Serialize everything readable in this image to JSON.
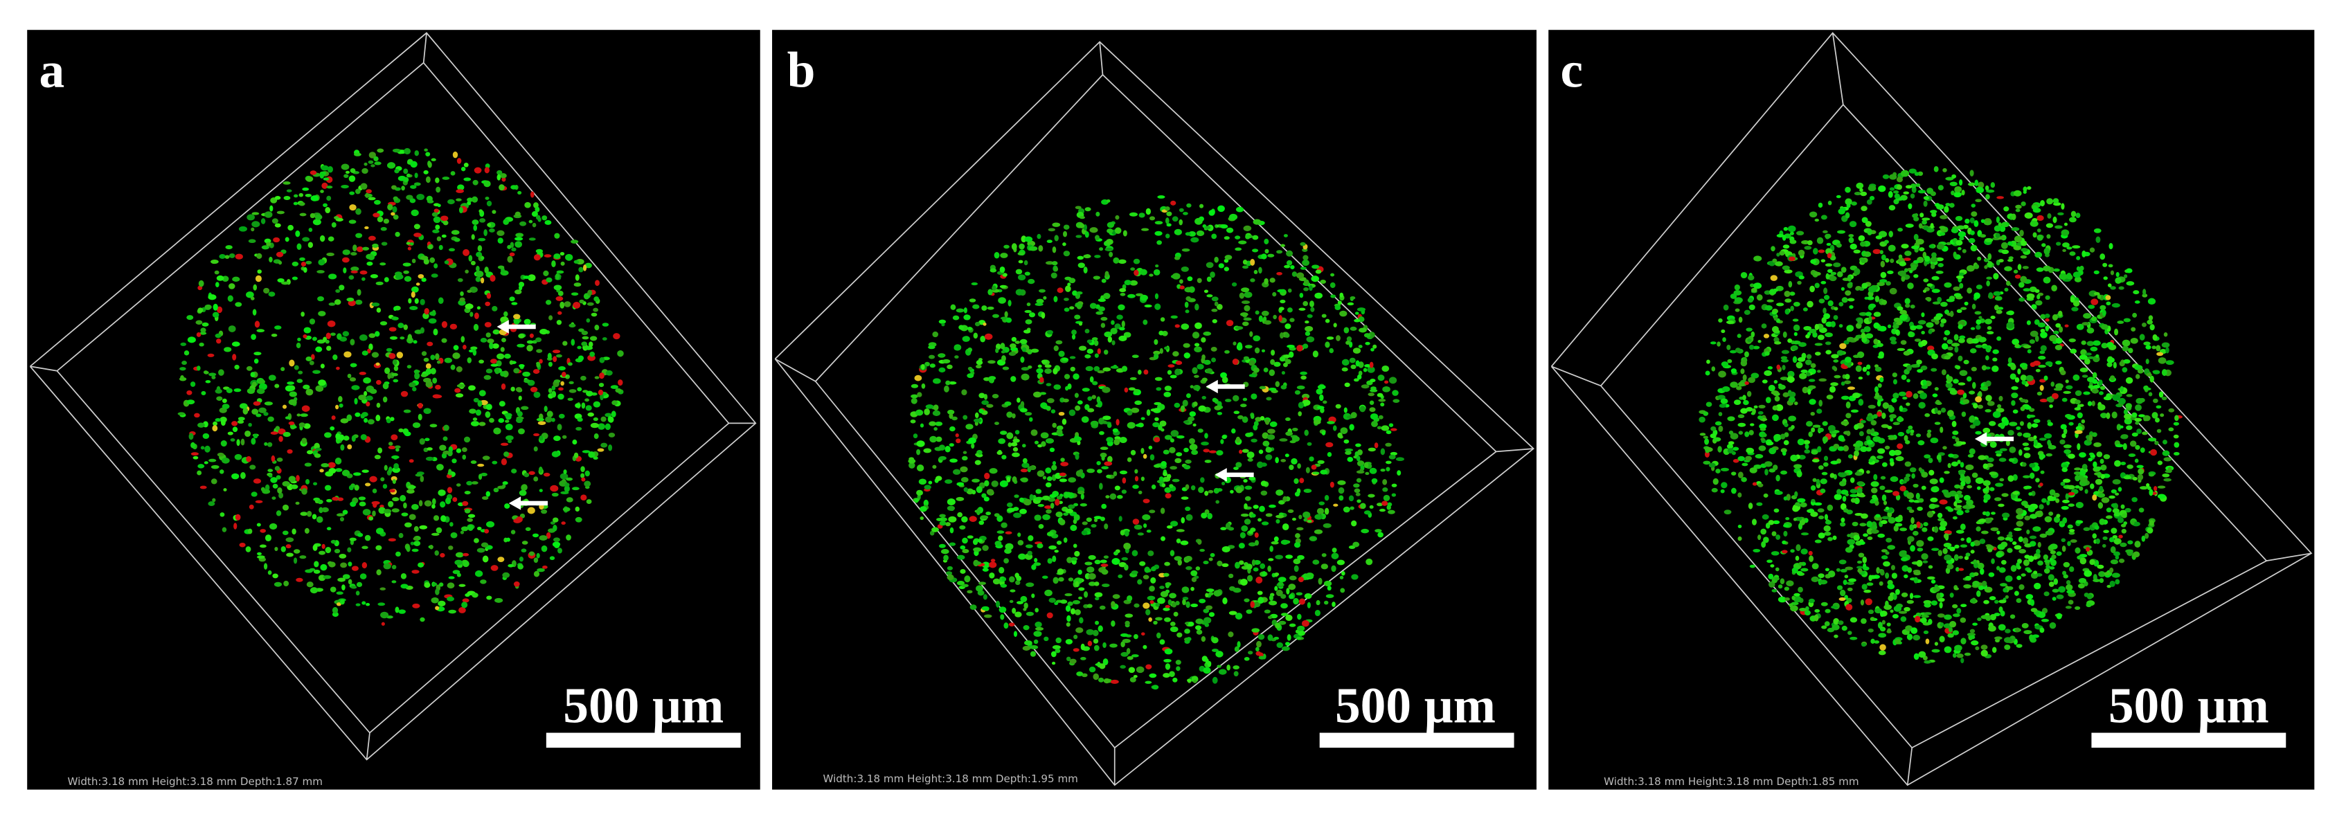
{
  "panels": [
    {
      "label": "a",
      "scale_bar": "500 µm",
      "dimensions": "Width:3.18 mm Height:3.18 mm Depth:1.87 mm"
    },
    {
      "label": "b",
      "scale_bar": "500 µm",
      "dimensions": "Width:3.18 mm Height:3.18 mm Depth:1.95 mm"
    },
    {
      "label": "c",
      "scale_bar": "500 µm",
      "dimensions": "Width:3.18 mm Height:3.18 mm Depth:1.85 mm"
    }
  ]
}
